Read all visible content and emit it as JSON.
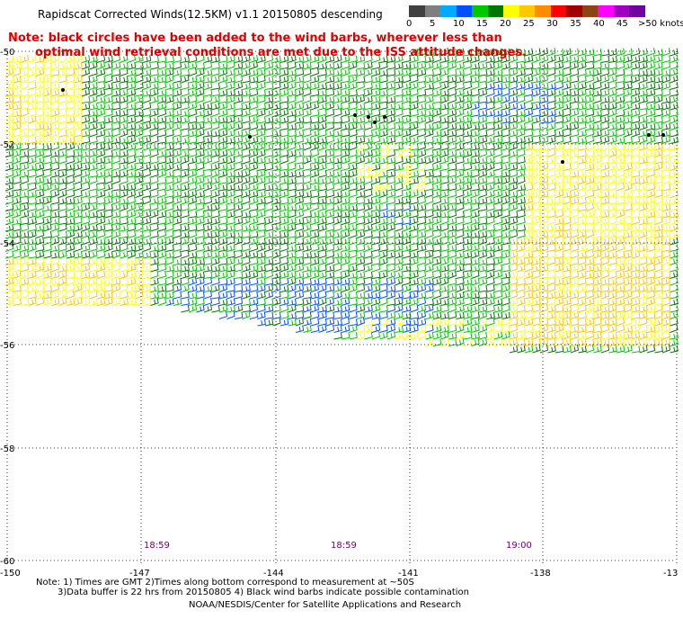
{
  "title": "Rapidscat Corrected Winds(12.5KM) v1.1 20150805 descending",
  "note": {
    "line1": "Note: black circles have been added to the wind barbs, wherever less than",
    "line2": "optimal wind retrieval conditions are met due to the ISS attitude changes."
  },
  "legend": {
    "colors": [
      "#404040",
      "#7f7f7f",
      "#00aaff",
      "#0050ff",
      "#00c800",
      "#007800",
      "#ffff00",
      "#ffc800",
      "#ff8c00",
      "#ff0000",
      "#a00000",
      "#8b4513",
      "#ff00ff",
      "#a000c0",
      "#7000a0"
    ],
    "labels": [
      "0",
      "5",
      "10",
      "15",
      "20",
      "25",
      "30",
      "35",
      "40",
      "45",
      ">50 knots"
    ],
    "label_offsets": [
      0,
      26,
      52,
      78,
      104,
      130,
      156,
      182,
      208,
      234,
      258
    ]
  },
  "lat_labels": [
    "-50",
    "-52",
    "-54",
    "-56",
    "-58",
    "-60"
  ],
  "lon_labels": [
    "-150",
    "-147",
    "-144",
    "-141",
    "-138",
    "-13"
  ],
  "time_labels": [
    "18:59",
    "18:59",
    "19:00"
  ],
  "footnotes": {
    "line1": "Note: 1) Times are GMT 2)Times along bottom correspond to measurement at ~50S",
    "line2": "3)Data buffer is 22 hrs from 20150805 4) Black wind barbs indicate possible contamination"
  },
  "credit": "NOAA/NESDIS/Center for Satellite Applications and Research"
}
